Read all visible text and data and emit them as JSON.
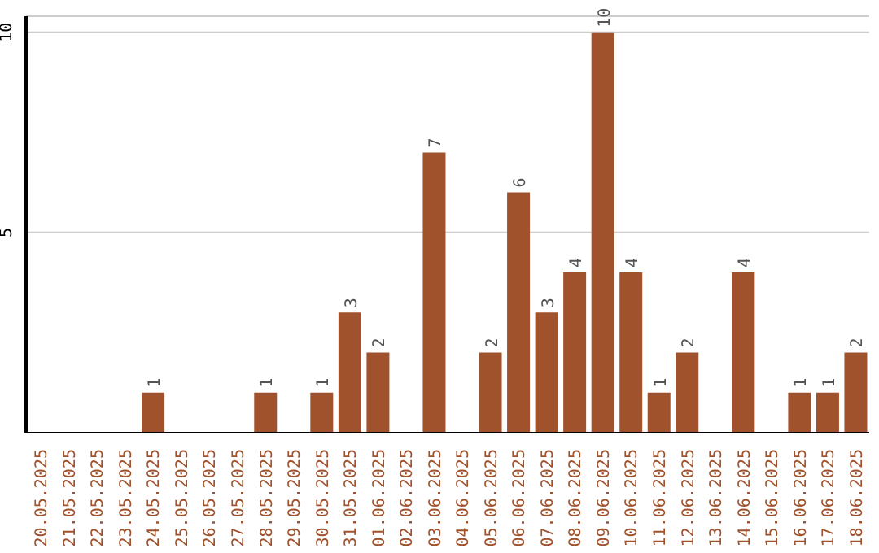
{
  "chart_data": {
    "type": "bar",
    "categories": [
      "20.05.2025",
      "21.05.2025",
      "22.05.2025",
      "23.05.2025",
      "24.05.2025",
      "25.05.2025",
      "26.05.2025",
      "27.05.2025",
      "28.05.2025",
      "29.05.2025",
      "30.05.2025",
      "31.05.2025",
      "01.06.2025",
      "02.06.2025",
      "03.06.2025",
      "04.06.2025",
      "05.06.2025",
      "06.06.2025",
      "07.06.2025",
      "08.06.2025",
      "09.06.2025",
      "10.06.2025",
      "11.06.2025",
      "12.06.2025",
      "13.06.2025",
      "14.06.2025",
      "15.06.2025",
      "16.06.2025",
      "17.06.2025",
      "18.06.2025"
    ],
    "values": [
      0,
      0,
      0,
      0,
      1,
      0,
      0,
      0,
      1,
      0,
      1,
      3,
      2,
      0,
      7,
      0,
      2,
      6,
      3,
      4,
      10,
      4,
      1,
      2,
      0,
      4,
      0,
      1,
      1,
      2
    ],
    "value_labels": [
      null,
      null,
      null,
      null,
      "1",
      null,
      null,
      null,
      "1",
      null,
      "1",
      "3",
      "2",
      null,
      "7",
      null,
      "2",
      "6",
      "3",
      "4",
      "10",
      "4",
      "1",
      "2",
      null,
      "4",
      null,
      "1",
      "1",
      "2"
    ],
    "color": "#a0522d",
    "ylim": [
      0,
      10.4
    ],
    "yticks": [
      5,
      10
    ],
    "grid": "y"
  }
}
